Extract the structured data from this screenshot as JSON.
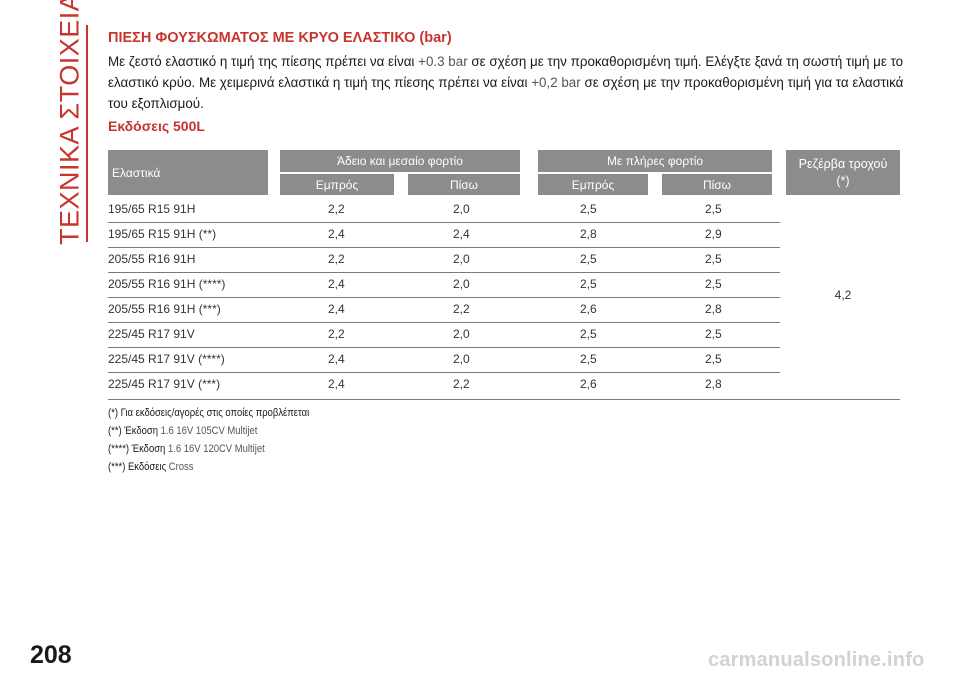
{
  "side_title": "ΤΕΧΝΙΚΑ ΣΤΟΙΧΕΙΑ",
  "page_number": "208",
  "heading": "ΠΙΕΣΗ ΦΟΥΣΚΩΜΑΤΟΣ ΜΕ ΚΡΥΟ ΕΛΑΣΤΙΚΟ (bar)",
  "intro": {
    "p1": "Με ζεστό ελαστικό η τιμή της πίεσης πρέπει να είναι ",
    "v1": "+0.3 bar",
    "p2": " σε σχέση με την προκαθορισμένη τιμή. Ελέγξτε ξανά τη σωστή τιμή με το ελαστικό κρύο. Με χειμερινά ελαστικά η τιμή της πίεσης πρέπει να είναι ",
    "v2": "+0,2 bar",
    "p3": " σε σχέση με την προκαθορισμένη τιμή για τα ελαστικά του εξοπλισμού."
  },
  "subheading": "Εκδόσεις 500L",
  "table": {
    "header": {
      "tyres": "Ελαστικά",
      "group1": "Άδειο και μεσαίο φορτίο",
      "group2": "Με πλήρες φορτίο",
      "front": "Εμπρός",
      "rear": "Πίσω",
      "spare_line1": "Ρεζέρβα τροχού",
      "spare_line2": "(*)"
    },
    "rows": [
      {
        "tyre": "195/65 R15 91H",
        "c1": "2,2",
        "c2": "2,0",
        "c3": "2,5",
        "c4": "2,5"
      },
      {
        "tyre": "195/65 R15 91H (**)",
        "c1": "2,4",
        "c2": "2,4",
        "c3": "2,8",
        "c4": "2,9"
      },
      {
        "tyre": "205/55 R16 91H",
        "c1": "2,2",
        "c2": "2,0",
        "c3": "2,5",
        "c4": "2,5"
      },
      {
        "tyre": "205/55 R16 91H (****)",
        "c1": "2,4",
        "c2": "2,0",
        "c3": "2,5",
        "c4": "2,5"
      },
      {
        "tyre": "205/55 R16 91H (***)",
        "c1": "2,4",
        "c2": "2,2",
        "c3": "2,6",
        "c4": "2,8"
      },
      {
        "tyre": "225/45 R17 91V",
        "c1": "2,2",
        "c2": "2,0",
        "c3": "2,5",
        "c4": "2,5"
      },
      {
        "tyre": "225/45 R17 91V (****)",
        "c1": "2,4",
        "c2": "2,0",
        "c3": "2,5",
        "c4": "2,5"
      },
      {
        "tyre": "225/45 R17 91V (***)",
        "c1": "2,4",
        "c2": "2,2",
        "c3": "2,6",
        "c4": "2,8"
      }
    ],
    "spare_value": "4,2"
  },
  "notes": {
    "n1": "(*) Για εκδόσεις/αγορές στις οποίες προβλέπεται",
    "n2_prefix": "(**) Έκδοση",
    "n2_value": " 1.6 16V 105CV Multijet",
    "n3_prefix": "(****) Έκδοση",
    "n3_value": " 1.6 16V 120CV Multijet",
    "n4_prefix": "(***) Εκδόσεις",
    "n4_value": " Cross"
  },
  "watermark": "carmanualsonline.info"
}
